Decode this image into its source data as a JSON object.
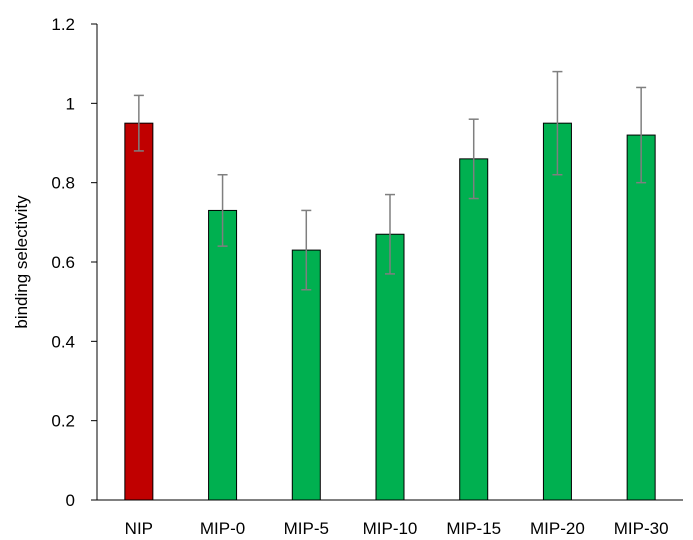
{
  "chart_data": {
    "type": "bar",
    "title": "",
    "xlabel": "",
    "ylabel": "binding selectivity",
    "ylim": [
      0,
      1.2
    ],
    "yticks": [
      "0",
      "0.2",
      "0.4",
      "0.6",
      "0.8",
      "1",
      "1.2"
    ],
    "yticks_values": [
      0,
      0.2,
      0.4,
      0.6,
      0.8,
      1.0,
      1.2
    ],
    "grid": false,
    "legend": "none",
    "categories": [
      "NIP",
      "MIP-0",
      "MIP-5",
      "MIP-10",
      "MIP-15",
      "MIP-20",
      "MIP-30"
    ],
    "values": [
      0.95,
      0.73,
      0.63,
      0.67,
      0.86,
      0.95,
      0.92
    ],
    "errors": [
      0.07,
      0.09,
      0.1,
      0.1,
      0.1,
      0.13,
      0.12
    ],
    "bar_colors": [
      "#c00000",
      "#00b050",
      "#00b050",
      "#00b050",
      "#00b050",
      "#00b050",
      "#00b050"
    ],
    "errorbar_color": "#7f7f7f",
    "axis_color": "#000000"
  }
}
